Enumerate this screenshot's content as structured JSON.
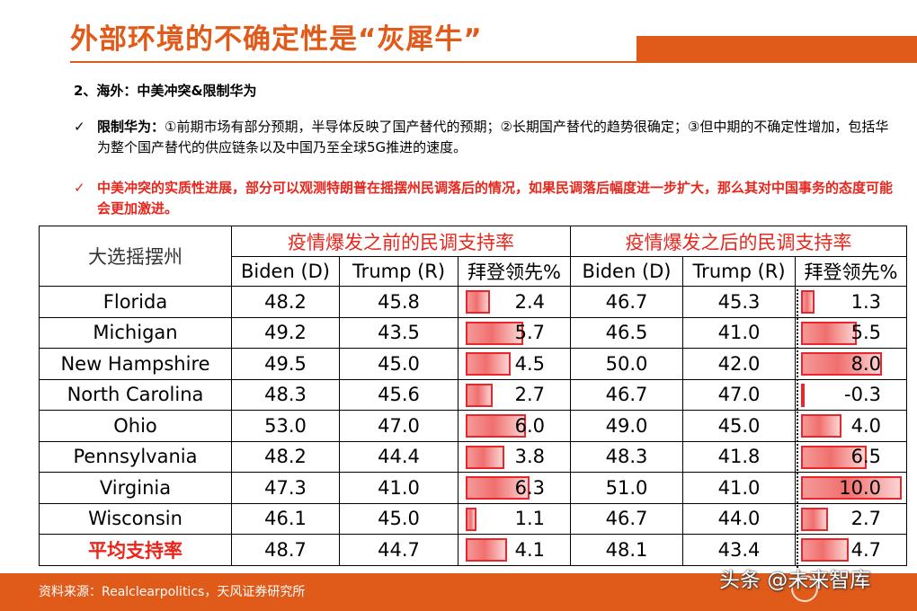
{
  "header": {
    "title": "外部环境的不确定性是“灰犀牛”"
  },
  "section_heading": "2、海外：中美冲突&限制华为",
  "bullets": [
    {
      "head": "限制华为：",
      "text": "①前期市场有部分预期，半导体反映了国产替代的预期；②长期国产替代的趋势很确定；③但中期的不确定性增加，包括华为整个国产替代的供应链条以及中国乃至全球5G推进的速度。"
    },
    {
      "text": "中美冲突的实质性进展，部分可以观测特朗普在摇摆州民调落后的情况，如果民调落后幅度进一步扩大，那么其对中国事务的态度可能会更加激进。"
    }
  ],
  "chart_data": {
    "type": "table",
    "corner_header": "大选摇摆州",
    "groups": [
      "疫情爆发之前的民调支持率",
      "疫情爆发之后的民调支持率"
    ],
    "columns": [
      "Biden (D)",
      "Trump (R)",
      "拜登领先%"
    ],
    "rows": [
      {
        "state": "Florida",
        "before": [
          48.2,
          45.8,
          2.4
        ],
        "after": [
          46.7,
          45.3,
          1.3
        ]
      },
      {
        "state": "Michigan",
        "before": [
          49.2,
          43.5,
          5.7
        ],
        "after": [
          46.5,
          41.0,
          5.5
        ]
      },
      {
        "state": "New Hampshire",
        "before": [
          49.5,
          45.0,
          4.5
        ],
        "after": [
          50.0,
          42.0,
          8.0
        ]
      },
      {
        "state": "North Carolina",
        "before": [
          48.3,
          45.6,
          2.7
        ],
        "after": [
          46.7,
          47.0,
          -0.3
        ]
      },
      {
        "state": "Ohio",
        "before": [
          53.0,
          47.0,
          6.0
        ],
        "after": [
          49.0,
          45.0,
          4.0
        ]
      },
      {
        "state": "Pennsylvania",
        "before": [
          48.2,
          44.4,
          3.8
        ],
        "after": [
          48.3,
          41.8,
          6.5
        ]
      },
      {
        "state": "Virginia",
        "before": [
          47.3,
          41.0,
          6.3
        ],
        "after": [
          51.0,
          41.0,
          10.0
        ]
      },
      {
        "state": "Wisconsin",
        "before": [
          46.1,
          45.0,
          1.1
        ],
        "after": [
          46.7,
          44.0,
          2.7
        ]
      },
      {
        "state": "平均支持率",
        "before": [
          48.7,
          44.7,
          4.1
        ],
        "after": [
          48.1,
          43.4,
          4.7
        ]
      }
    ],
    "bar_color": "#e8262b"
  },
  "footer": {
    "source": "资料来源：Realclearpolitics，天风证券研究所",
    "watermark": "头条 @未来智库"
  },
  "colors": {
    "accent": "#e05a1a",
    "highlight": "#e8261c"
  }
}
